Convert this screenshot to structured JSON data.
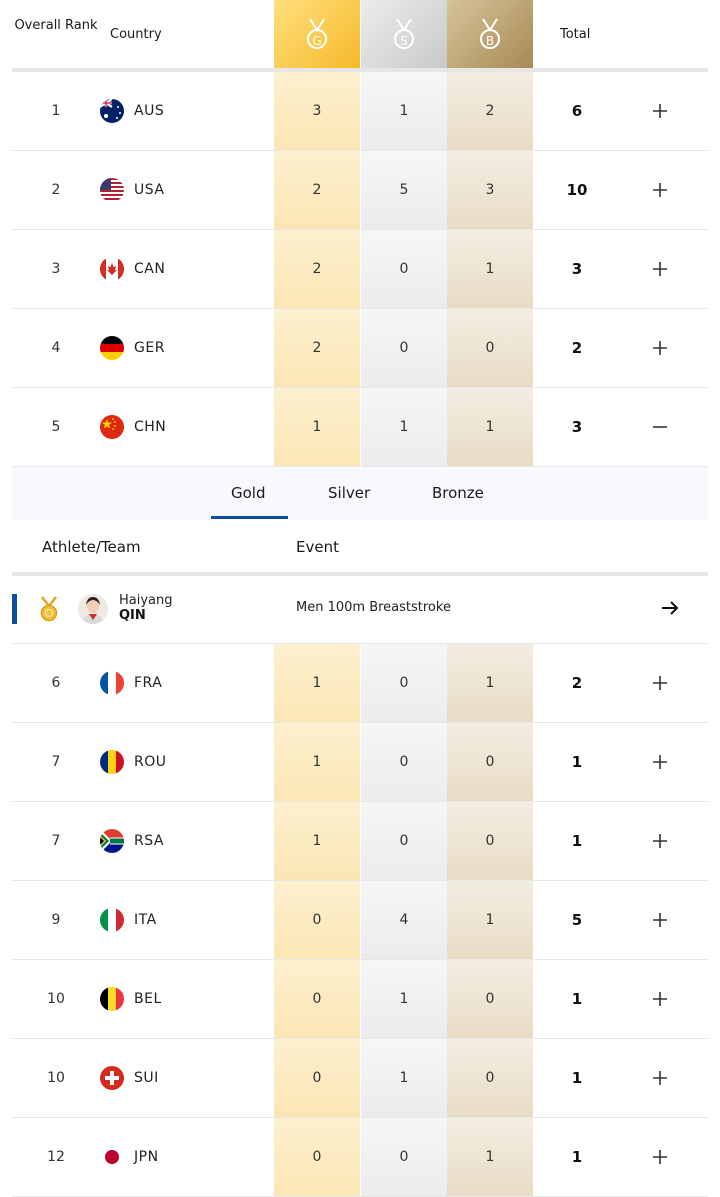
{
  "header": {
    "rank_label": "Overall Rank",
    "country_label": "Country",
    "gold_label": "G",
    "silver_label": "S",
    "bronze_label": "B",
    "total_label": "Total"
  },
  "rows_top": [
    {
      "rank": "1",
      "code": "AUS",
      "gold": "3",
      "silver": "1",
      "bronze": "2",
      "total": "6",
      "toggle": "plus-icon",
      "flag": "australia-flag-icon"
    },
    {
      "rank": "2",
      "code": "USA",
      "gold": "2",
      "silver": "5",
      "bronze": "3",
      "total": "10",
      "toggle": "plus-icon",
      "flag": "usa-flag-icon"
    },
    {
      "rank": "3",
      "code": "CAN",
      "gold": "2",
      "silver": "0",
      "bronze": "1",
      "total": "3",
      "toggle": "plus-icon",
      "flag": "canada-flag-icon"
    },
    {
      "rank": "4",
      "code": "GER",
      "gold": "2",
      "silver": "0",
      "bronze": "0",
      "total": "2",
      "toggle": "plus-icon",
      "flag": "germany-flag-icon"
    },
    {
      "rank": "5",
      "code": "CHN",
      "gold": "1",
      "silver": "1",
      "bronze": "1",
      "total": "3",
      "toggle": "minus-icon",
      "flag": "china-flag-icon"
    }
  ],
  "expanded": {
    "tabs": [
      "Gold",
      "Silver",
      "Bronze"
    ],
    "active_tab": "Gold",
    "athlete_header": "Athlete/Team",
    "event_header": "Event",
    "athlete": {
      "first": "Haiyang",
      "last": "QIN",
      "event": "Men 100m Breaststroke",
      "medal": "gold-medal-icon"
    }
  },
  "rows_bottom": [
    {
      "rank": "6",
      "code": "FRA",
      "gold": "1",
      "silver": "0",
      "bronze": "1",
      "total": "2",
      "toggle": "plus-icon",
      "flag": "france-flag-icon"
    },
    {
      "rank": "7",
      "code": "ROU",
      "gold": "1",
      "silver": "0",
      "bronze": "0",
      "total": "1",
      "toggle": "plus-icon",
      "flag": "romania-flag-icon"
    },
    {
      "rank": "7",
      "code": "RSA",
      "gold": "1",
      "silver": "0",
      "bronze": "0",
      "total": "1",
      "toggle": "plus-icon",
      "flag": "south-africa-flag-icon"
    },
    {
      "rank": "9",
      "code": "ITA",
      "gold": "0",
      "silver": "4",
      "bronze": "1",
      "total": "5",
      "toggle": "plus-icon",
      "flag": "italy-flag-icon"
    },
    {
      "rank": "10",
      "code": "BEL",
      "gold": "0",
      "silver": "1",
      "bronze": "0",
      "total": "1",
      "toggle": "plus-icon",
      "flag": "belgium-flag-icon"
    },
    {
      "rank": "10",
      "code": "SUI",
      "gold": "0",
      "silver": "1",
      "bronze": "0",
      "total": "1",
      "toggle": "plus-icon",
      "flag": "switzerland-flag-icon"
    },
    {
      "rank": "12",
      "code": "JPN",
      "gold": "0",
      "silver": "0",
      "bronze": "1",
      "total": "1",
      "toggle": "plus-icon",
      "flag": "japan-flag-icon"
    }
  ],
  "colors": {
    "accent": "#0b4fa3",
    "gold": "#f6b92a",
    "silver": "#c9c9c9",
    "bronze": "#a88a55"
  }
}
